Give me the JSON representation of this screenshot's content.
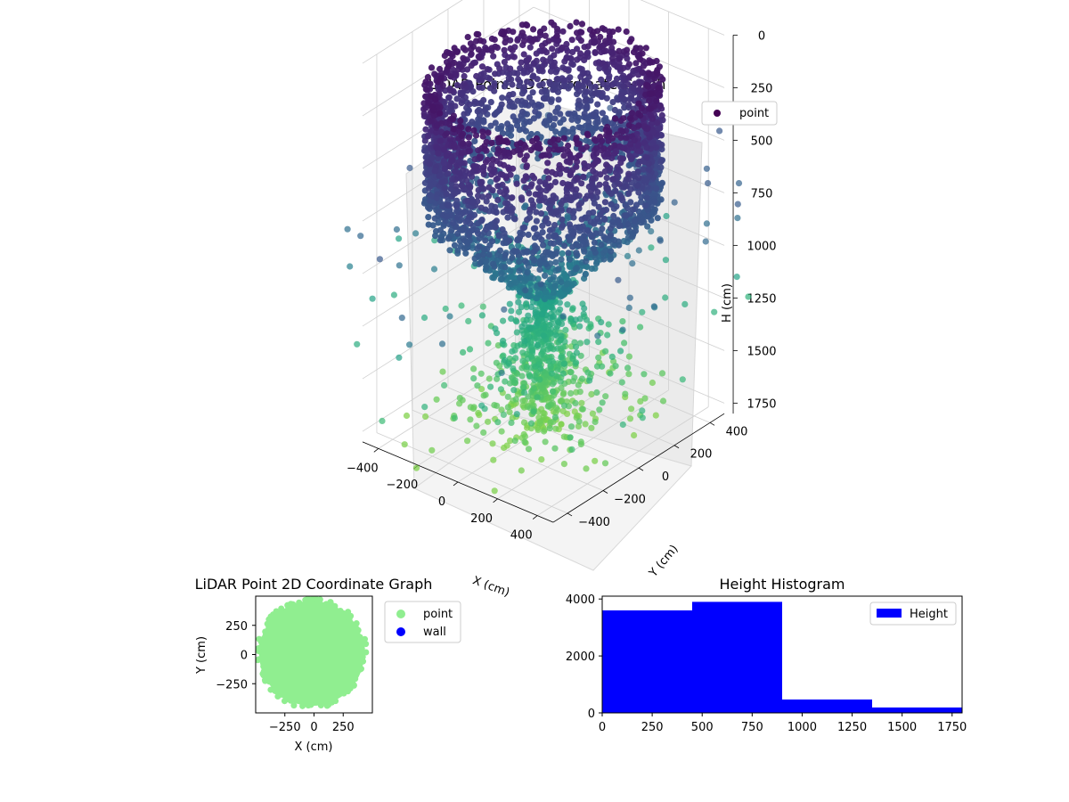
{
  "figure": {
    "background": "#ffffff"
  },
  "chart_data": [
    {
      "type": "scatter",
      "projection": "3d",
      "title": "LiDAR Point 3D Coordinate Graph",
      "xlabel": "X (cm)",
      "ylabel": "Y (cm)",
      "zlabel": "H (cm)",
      "x_ticks": [
        "-400",
        "-200",
        "0",
        "200",
        "400"
      ],
      "y_ticks": [
        "-400",
        "-200",
        "0",
        "200",
        "400"
      ],
      "z_ticks": [
        "0",
        "250",
        "500",
        "750",
        "1000",
        "1250",
        "1500",
        "1750"
      ],
      "xlim": [
        -480,
        480
      ],
      "ylim": [
        -480,
        480
      ],
      "zlim": [
        0,
        1800
      ],
      "z_inverted": true,
      "colormap": "viridis",
      "legend": [
        {
          "label": "point",
          "color": "#440154"
        }
      ],
      "legend_position": "top-right",
      "grid": true,
      "pane_color": "#f2f2f2",
      "description_of_shape": [
        {
          "part": "ring",
          "height_range": [
            150,
            750
          ],
          "radius": 450
        },
        {
          "part": "funnel",
          "height_range": [
            750,
            1150
          ],
          "radius_range": [
            450,
            80
          ]
        },
        {
          "part": "column",
          "height_range": [
            1150,
            1800
          ],
          "radius_range": [
            80,
            350
          ]
        }
      ]
    },
    {
      "type": "scatter",
      "title": "LiDAR Point 2D Coordinate Graph",
      "xlabel": "X (cm)",
      "ylabel": "Y (cm)",
      "x_ticks": [
        "−250",
        "0",
        "250"
      ],
      "y_ticks": [
        "250",
        "0",
        "−250"
      ],
      "xlim": [
        -500,
        500
      ],
      "ylim": [
        -500,
        500
      ],
      "series": [
        {
          "name": "point",
          "color": "#90ee90",
          "shape": "disk",
          "radius": 450
        },
        {
          "name": "wall",
          "color": "#0000ff",
          "points": []
        }
      ],
      "legend_position": "outside-right"
    },
    {
      "type": "bar",
      "title": "Height Histogram",
      "bin_edges": [
        0,
        450,
        900,
        1350,
        1800
      ],
      "values": [
        3600,
        3900,
        470,
        190
      ],
      "x_ticks": [
        "0",
        "250",
        "500",
        "750",
        "1000",
        "1250",
        "1500",
        "1750"
      ],
      "y_ticks": [
        "0",
        "2000",
        "4000"
      ],
      "xlim": [
        0,
        1800
      ],
      "ylim": [
        0,
        4100
      ],
      "color": "#0000ff",
      "legend": [
        {
          "label": "Height",
          "color": "#0000ff"
        }
      ],
      "legend_position": "top-right"
    }
  ]
}
